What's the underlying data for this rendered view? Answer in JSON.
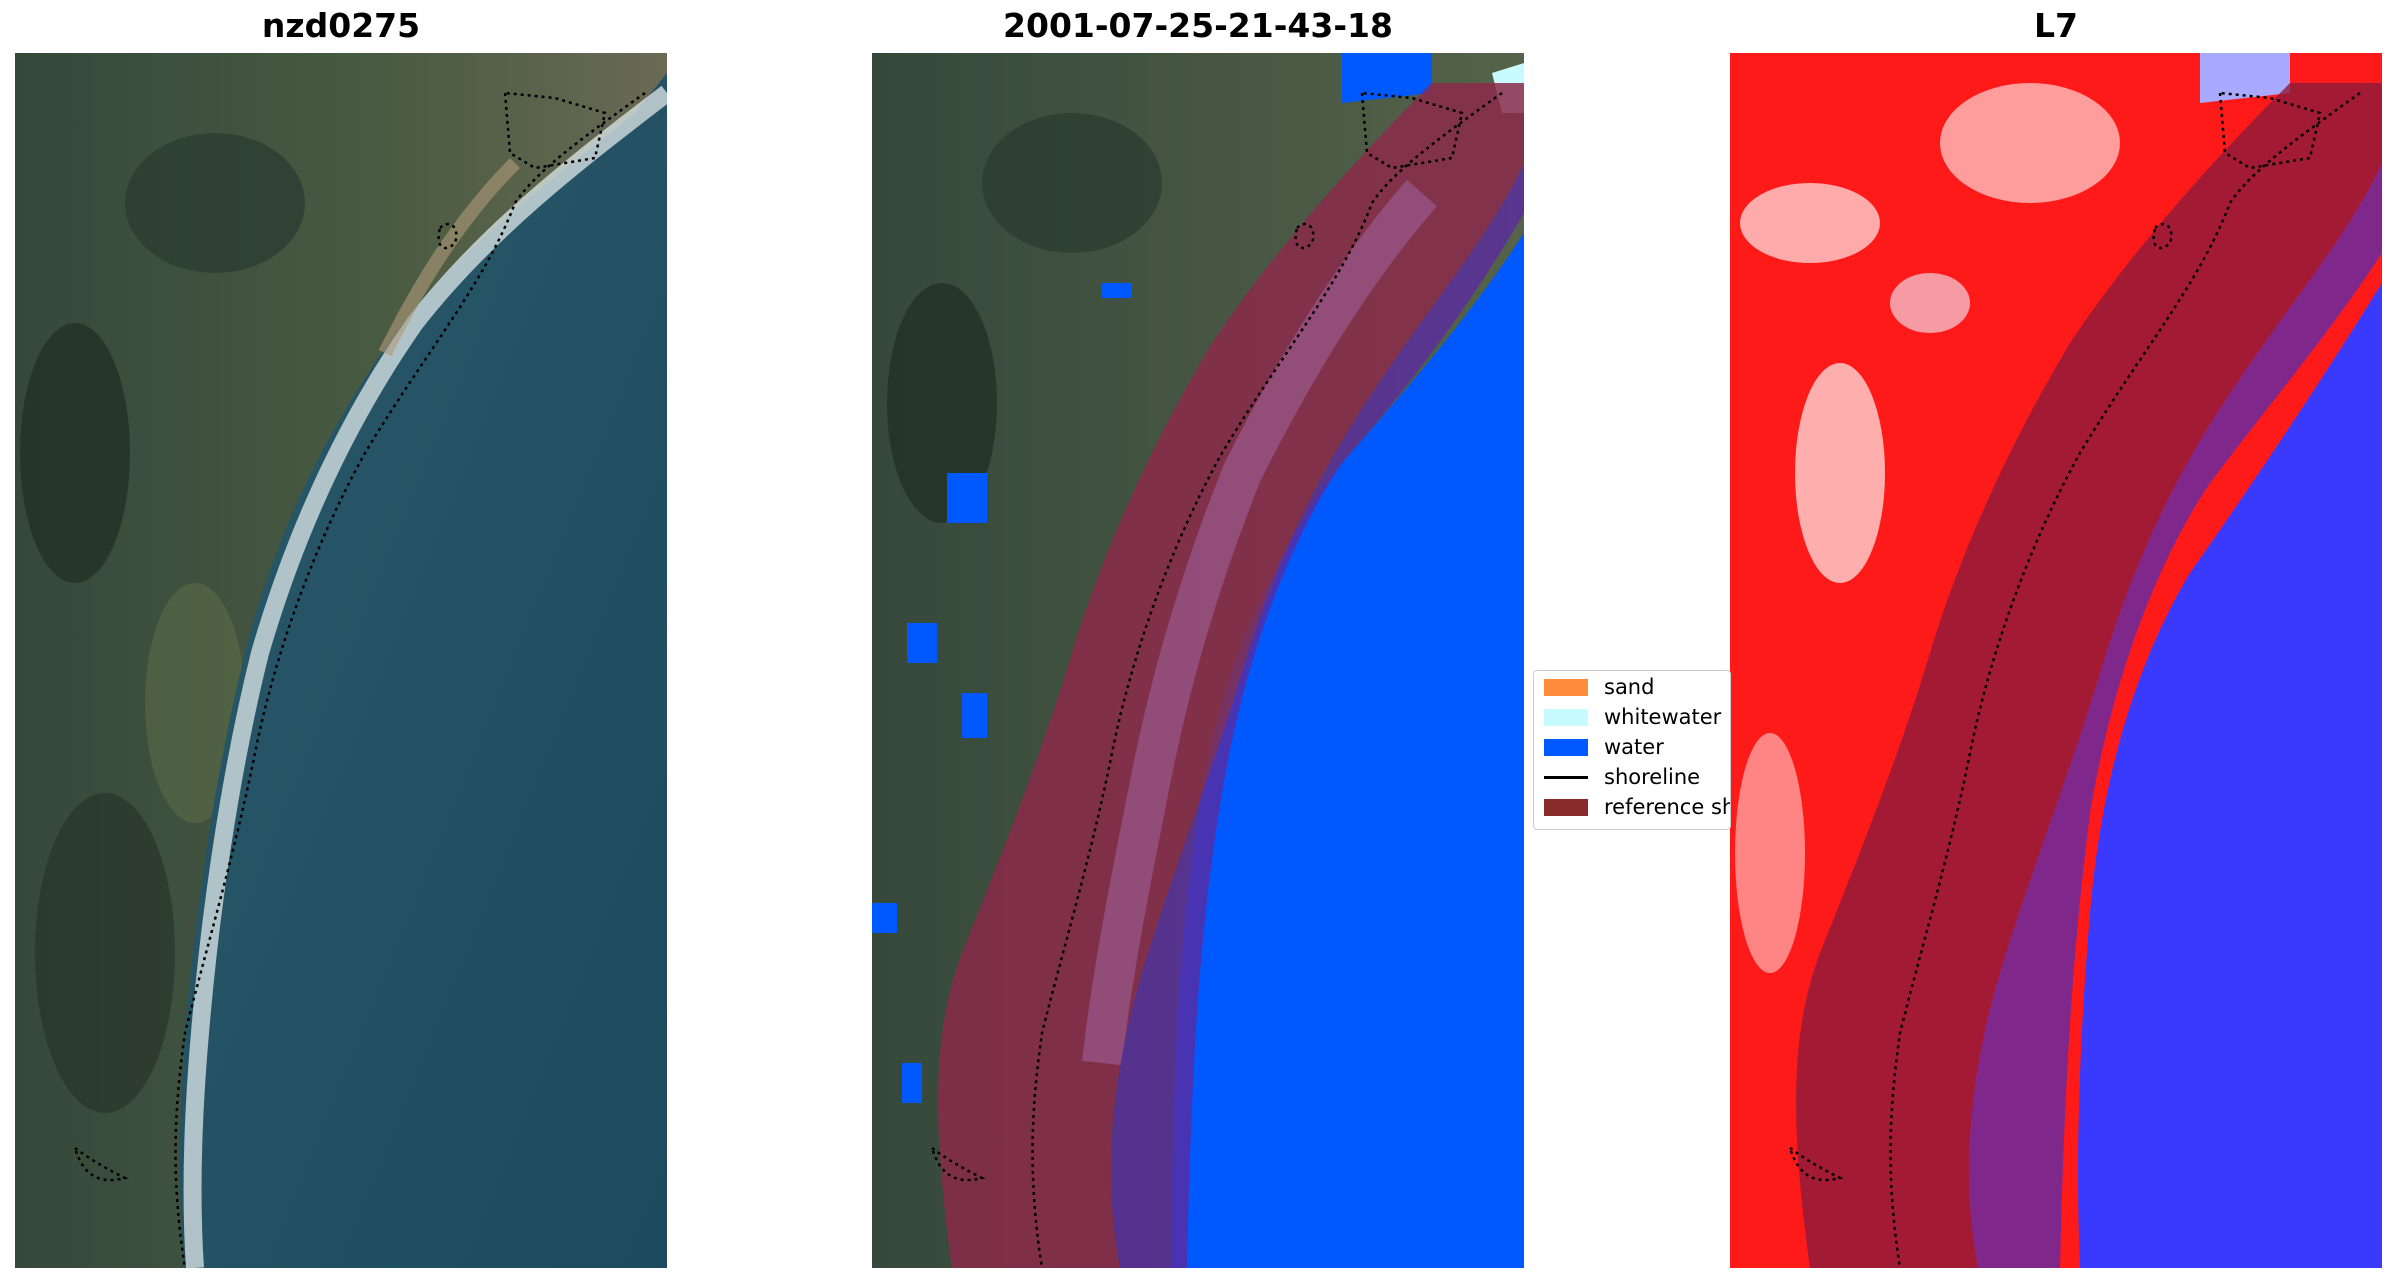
{
  "panels": [
    {
      "title": "nzd0275"
    },
    {
      "title": "2001-07-25-21-43-18"
    },
    {
      "title": "L7"
    }
  ],
  "legend": {
    "items": [
      {
        "label": "sand",
        "color": "#ff8c3a",
        "kind": "patch"
      },
      {
        "label": "whitewater",
        "color": "#c8fbff",
        "kind": "patch"
      },
      {
        "label": "water",
        "color": "#0059ff",
        "kind": "patch"
      },
      {
        "label": "shoreline",
        "color": "#000000",
        "kind": "line"
      },
      {
        "label": "reference sh",
        "color": "#8b2a2a",
        "kind": "patch"
      }
    ]
  },
  "colors": {
    "land_dark": "#2c3d33",
    "land_green": "#4a5e3e",
    "sea": "#1f4e63",
    "surf": "#e6eef0",
    "water_class": "#0059ff",
    "reference_band": "#8b2a4a",
    "index_red": "#ff1a1a",
    "index_blue": "#3a3aff"
  }
}
